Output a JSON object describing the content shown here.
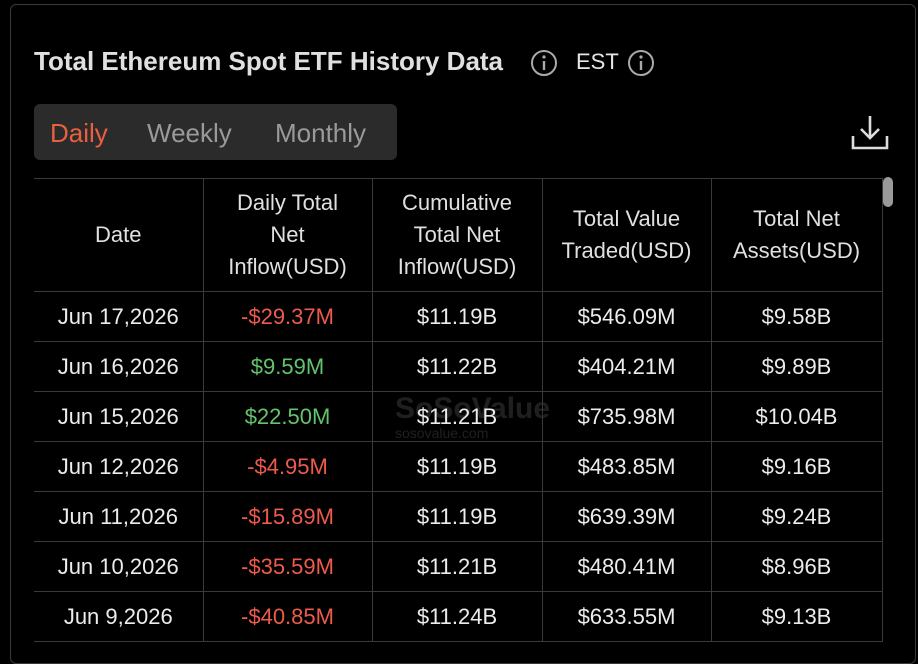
{
  "header": {
    "title": "Total Ethereum Spot ETF History Data",
    "timezone": "EST"
  },
  "tabs": [
    "Daily",
    "Weekly",
    "Monthly"
  ],
  "table": {
    "columns": [
      "Date",
      "Daily Total Net Inflow(USD)",
      "Cumulative Total Net Inflow(USD)",
      "Total Value Traded(USD)",
      "Total Net Assets(USD)"
    ],
    "rows": [
      [
        "Jun 17,2026",
        "-$29.37M",
        "$11.19B",
        "$546.09M",
        "$9.58B"
      ],
      [
        "Jun 16,2026",
        "$9.59M",
        "$11.22B",
        "$404.21M",
        "$9.89B"
      ],
      [
        "Jun 15,2026",
        "$22.50M",
        "$11.21B",
        "$735.98M",
        "$10.04B"
      ],
      [
        "Jun 12,2026",
        "-$4.95M",
        "$11.19B",
        "$483.85M",
        "$9.16B"
      ],
      [
        "Jun 11,2026",
        "-$15.89M",
        "$11.19B",
        "$639.39M",
        "$9.24B"
      ],
      [
        "Jun 10,2026",
        "-$35.59M",
        "$11.21B",
        "$480.41M",
        "$8.96B"
      ],
      [
        "Jun 9,2026",
        "-$40.85M",
        "$11.24B",
        "$633.55M",
        "$9.13B"
      ]
    ]
  },
  "watermark": {
    "name": "SoSoValue",
    "site": "sosovalue.com"
  }
}
